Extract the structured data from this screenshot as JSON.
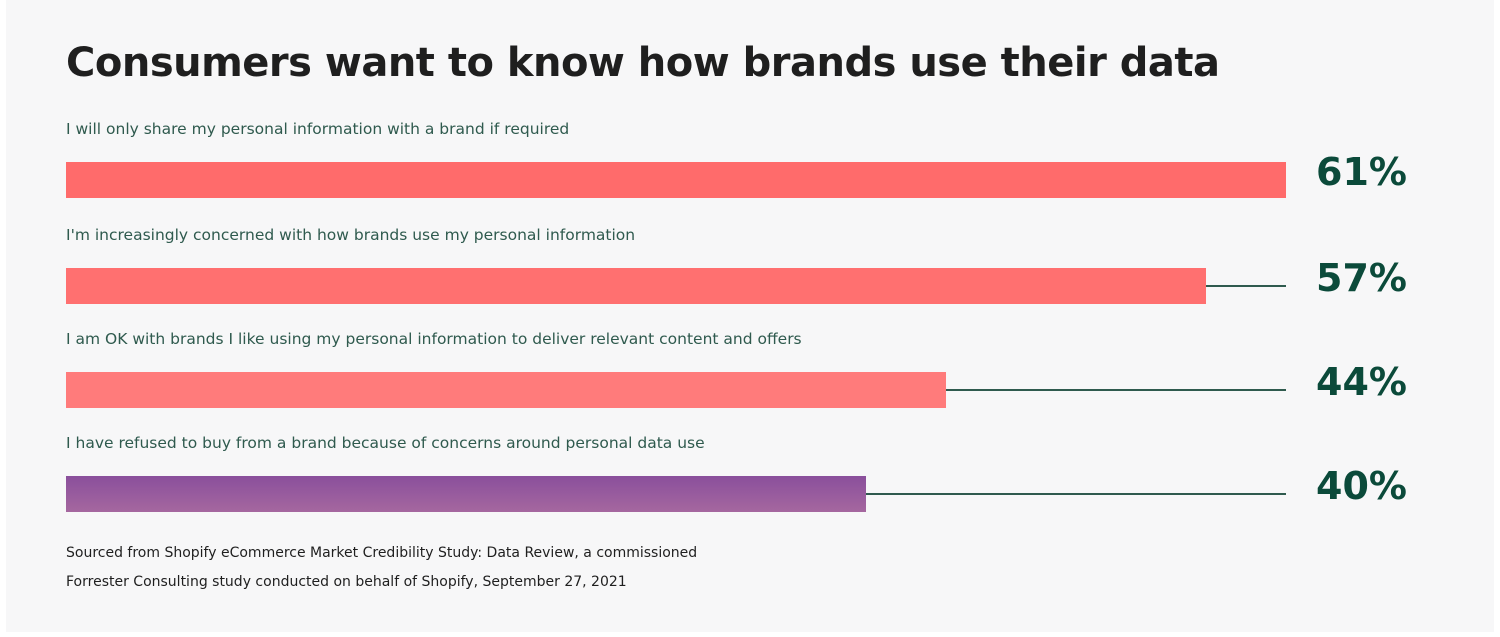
{
  "chart_data": {
    "type": "bar",
    "orientation": "horizontal",
    "title": "Consumers want to know how brands use their data",
    "xlim": [
      0,
      61
    ],
    "categories": [
      "I will only share my personal information with a brand if required",
      "I'm increasingly concerned with how brands use my personal information",
      "I am OK with brands I like using my personal information to deliver relevant content and offers",
      "I have refused to buy from a brand because of concerns around personal data use"
    ],
    "values": [
      61,
      57,
      44,
      40
    ],
    "value_labels": [
      "61%",
      "57%",
      "44%",
      "40%"
    ],
    "bar_colors": [
      "#ff6b6b",
      "#ff7070",
      "#ff7b7b",
      "#8e5a9e"
    ],
    "track_color": "#2f5a4e",
    "label_color": "#2f5a4e",
    "value_color": "#0b4a3a",
    "source_lines": [
      "Sourced from Shopify eCommerce Market Credibility Study: Data Review, a commissioned",
      "Forrester Consulting study conducted on behalf of Shopify, September 27, 2021"
    ]
  }
}
